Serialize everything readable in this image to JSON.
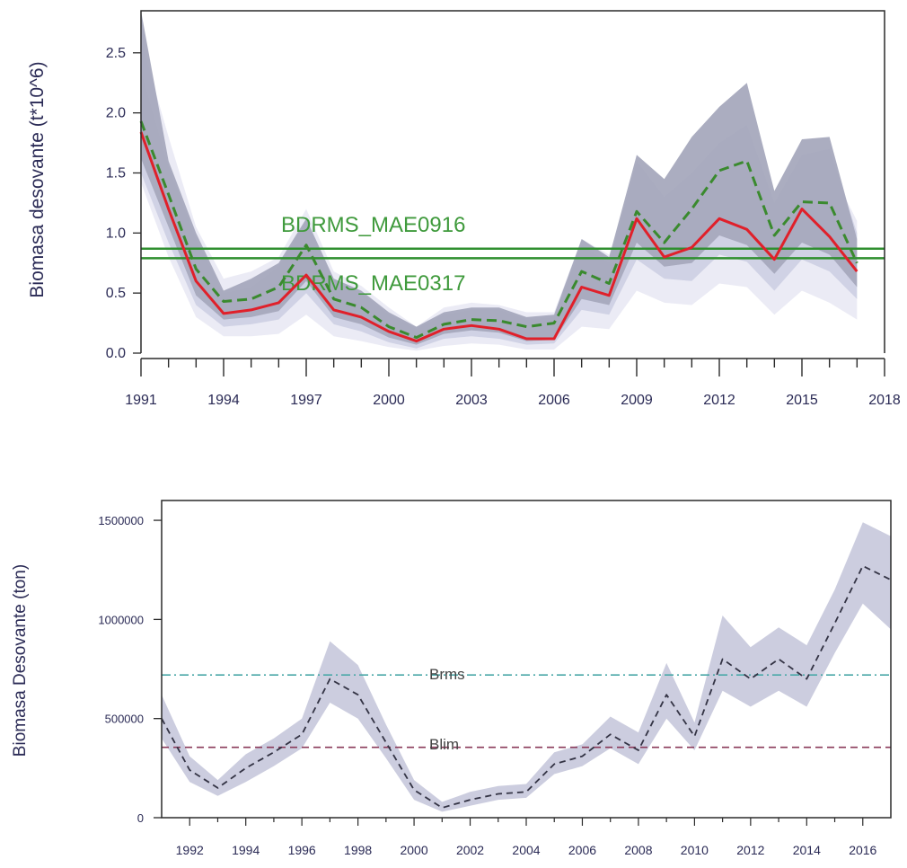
{
  "chart_data": [
    {
      "type": "line",
      "title": "",
      "xlabel": "",
      "ylabel": "Biomasa desovante (t*10^6)",
      "xlim": [
        1991,
        2018
      ],
      "ylim": [
        0,
        2.85
      ],
      "x_ticks": [
        "1991",
        "1994",
        "1997",
        "2000",
        "2003",
        "2006",
        "2009",
        "2012",
        "2015",
        "2018"
      ],
      "y_ticks": [
        "0.0",
        "0.5",
        "1.0",
        "1.5",
        "2.0",
        "2.5"
      ],
      "grid": false,
      "x": [
        1991,
        1992,
        1993,
        1994,
        1995,
        1996,
        1997,
        1998,
        1999,
        2000,
        2001,
        2002,
        2003,
        2004,
        2005,
        2006,
        2007,
        2008,
        2009,
        2010,
        2011,
        2012,
        2013,
        2014,
        2015,
        2016,
        2017
      ],
      "series": [
        {
          "style": "solid",
          "color": "#e0202a",
          "values": [
            1.84,
            1.2,
            0.6,
            0.33,
            0.36,
            0.42,
            0.65,
            0.36,
            0.3,
            0.18,
            0.1,
            0.2,
            0.23,
            0.2,
            0.12,
            0.12,
            0.55,
            0.48,
            1.12,
            0.8,
            0.88,
            1.12,
            1.03,
            0.78,
            1.2,
            0.97,
            0.68
          ]
        },
        {
          "style": "dashed",
          "color": "#3a8a2e",
          "values": [
            1.93,
            1.32,
            0.7,
            0.43,
            0.45,
            0.55,
            0.9,
            0.45,
            0.38,
            0.22,
            0.13,
            0.24,
            0.28,
            0.27,
            0.22,
            0.25,
            0.68,
            0.58,
            1.18,
            0.92,
            1.2,
            1.52,
            1.6,
            0.98,
            1.26,
            1.25,
            0.75
          ]
        }
      ],
      "bands": [
        {
          "color": "#eaeaf4",
          "lower": [
            1.42,
            0.8,
            0.3,
            0.14,
            0.14,
            0.16,
            0.32,
            0.14,
            0.1,
            0.05,
            0.02,
            0.06,
            0.08,
            0.07,
            0.03,
            0.03,
            0.22,
            0.2,
            0.52,
            0.42,
            0.4,
            0.58,
            0.55,
            0.32,
            0.52,
            0.42,
            0.28
          ],
          "upper": [
            2.6,
            1.8,
            1.05,
            0.62,
            0.68,
            0.8,
            1.2,
            0.68,
            0.56,
            0.38,
            0.22,
            0.38,
            0.42,
            0.4,
            0.34,
            0.34,
            0.95,
            0.82,
            1.5,
            1.1,
            1.2,
            1.6,
            1.5,
            1.15,
            1.65,
            1.55,
            1.1
          ]
        },
        {
          "color": "#cfd1e4",
          "lower": [
            1.5,
            0.92,
            0.4,
            0.22,
            0.24,
            0.28,
            0.5,
            0.24,
            0.18,
            0.09,
            0.04,
            0.12,
            0.14,
            0.12,
            0.07,
            0.08,
            0.36,
            0.32,
            0.78,
            0.62,
            0.6,
            0.82,
            0.76,
            0.52,
            0.78,
            0.68,
            0.45
          ],
          "upper": [
            2.35,
            1.55,
            0.95,
            0.5,
            0.55,
            0.72,
            1.1,
            0.6,
            0.5,
            0.32,
            0.2,
            0.32,
            0.36,
            0.36,
            0.28,
            0.3,
            0.9,
            0.75,
            1.6,
            1.3,
            1.5,
            1.75,
            1.9,
            1.25,
            1.65,
            1.7,
            1.0
          ]
        },
        {
          "color": "#a7a9bd",
          "lower": [
            1.62,
            1.05,
            0.48,
            0.28,
            0.3,
            0.35,
            0.6,
            0.3,
            0.24,
            0.13,
            0.07,
            0.16,
            0.19,
            0.17,
            0.1,
            0.11,
            0.45,
            0.4,
            0.92,
            0.72,
            0.75,
            0.98,
            0.9,
            0.66,
            0.92,
            0.82,
            0.55
          ],
          "upper": [
            2.85,
            1.6,
            1.0,
            0.52,
            0.62,
            0.75,
            1.12,
            0.62,
            0.52,
            0.34,
            0.22,
            0.34,
            0.38,
            0.38,
            0.3,
            0.32,
            0.95,
            0.8,
            1.65,
            1.45,
            1.8,
            2.05,
            2.25,
            1.35,
            1.78,
            1.8,
            0.95
          ]
        }
      ],
      "reference_lines": [
        {
          "label": "BDRMS_MAE0916",
          "y": 0.87,
          "color": "#2f8f2f"
        },
        {
          "label": "BDRMS_MAE0317",
          "y": 0.79,
          "color": "#2f8f2f"
        }
      ]
    },
    {
      "type": "line",
      "title": "",
      "xlabel": "",
      "ylabel": "Biomasa Desovante (ton)",
      "xlim": [
        1991,
        2017
      ],
      "ylim": [
        0,
        1600000
      ],
      "x_ticks": [
        "1992",
        "1994",
        "1996",
        "1998",
        "2000",
        "2002",
        "2004",
        "2006",
        "2008",
        "2010",
        "2012",
        "2014",
        "2016"
      ],
      "y_ticks": [
        "0",
        "500000",
        "1000000",
        "1500000"
      ],
      "grid": false,
      "x": [
        1991,
        1992,
        1993,
        1994,
        1995,
        1996,
        1997,
        1998,
        1999,
        2000,
        2001,
        2002,
        2003,
        2004,
        2005,
        2006,
        2007,
        2008,
        2009,
        2010,
        2011,
        2012,
        2013,
        2014,
        2015,
        2016,
        2017
      ],
      "series": [
        {
          "style": "dashed",
          "color": "#333344",
          "values": [
            500000,
            240000,
            150000,
            250000,
            330000,
            420000,
            700000,
            620000,
            380000,
            140000,
            50000,
            90000,
            120000,
            130000,
            270000,
            310000,
            420000,
            340000,
            620000,
            410000,
            800000,
            700000,
            800000,
            700000,
            980000,
            1270000,
            1200000
          ]
        }
      ],
      "bands": [
        {
          "color": "#c9cadd",
          "lower": [
            400000,
            180000,
            110000,
            180000,
            260000,
            350000,
            580000,
            500000,
            300000,
            90000,
            30000,
            60000,
            90000,
            100000,
            220000,
            260000,
            350000,
            270000,
            500000,
            340000,
            640000,
            560000,
            640000,
            560000,
            830000,
            1080000,
            950000
          ],
          "upper": [
            620000,
            310000,
            190000,
            320000,
            400000,
            500000,
            890000,
            770000,
            470000,
            190000,
            80000,
            130000,
            160000,
            170000,
            330000,
            370000,
            510000,
            430000,
            780000,
            480000,
            1020000,
            860000,
            960000,
            870000,
            1150000,
            1490000,
            1420000
          ]
        }
      ],
      "reference_lines": [
        {
          "label": "Brms",
          "y": 720000,
          "color": "#4aa8a8",
          "style": "dashdot"
        },
        {
          "label": "Blim",
          "y": 355000,
          "color": "#8a3a5a",
          "style": "dashed"
        }
      ]
    }
  ]
}
